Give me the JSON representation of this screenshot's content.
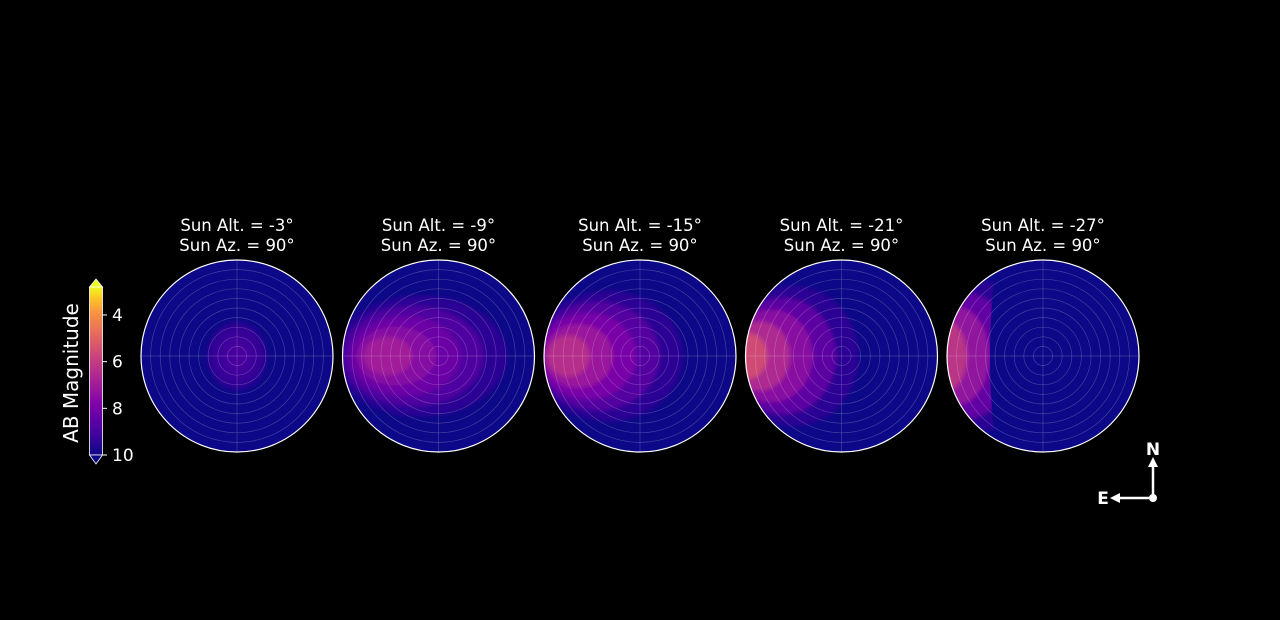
{
  "chart_data": {
    "type": "heatmap",
    "projection": "polar (all-sky)",
    "panels": [
      {
        "title_line1": "Sun Alt. = -3°",
        "title_line2": "Sun Az. = 90°",
        "sun_alt": -3,
        "sun_az": 90,
        "brightest_mag": 9.0
      },
      {
        "title_line1": "Sun Alt. = -9°",
        "title_line2": "Sun Az. = 90°",
        "sun_alt": -9,
        "sun_az": 90,
        "brightest_mag": 6.9
      },
      {
        "title_line1": "Sun Alt. = -15°",
        "title_line2": "Sun Az. = 90°",
        "sun_alt": -15,
        "sun_az": 90,
        "brightest_mag": 6.3
      },
      {
        "title_line1": "Sun Alt. = -21°",
        "title_line2": "Sun Az. = 90°",
        "sun_alt": -21,
        "sun_az": 90,
        "brightest_mag": 5.5
      },
      {
        "title_line1": "Sun Alt. = -27°",
        "title_line2": "Sun Az. = 90°",
        "sun_alt": -27,
        "sun_az": 90,
        "brightest_mag": 5.0
      }
    ],
    "colorbar": {
      "label": "AB Magnitude",
      "ticks": [
        "4",
        "6",
        "8",
        "10"
      ],
      "range": [
        2.8,
        10
      ],
      "inverted": true,
      "colormap": "plasma",
      "extend": "both"
    },
    "grid": true
  },
  "compass": {
    "north_label": "N",
    "east_label": "E"
  },
  "colors": {
    "background": "#000000",
    "sky_base": "#0d0887",
    "outline": "#ffffff",
    "text": "#ffffff"
  }
}
